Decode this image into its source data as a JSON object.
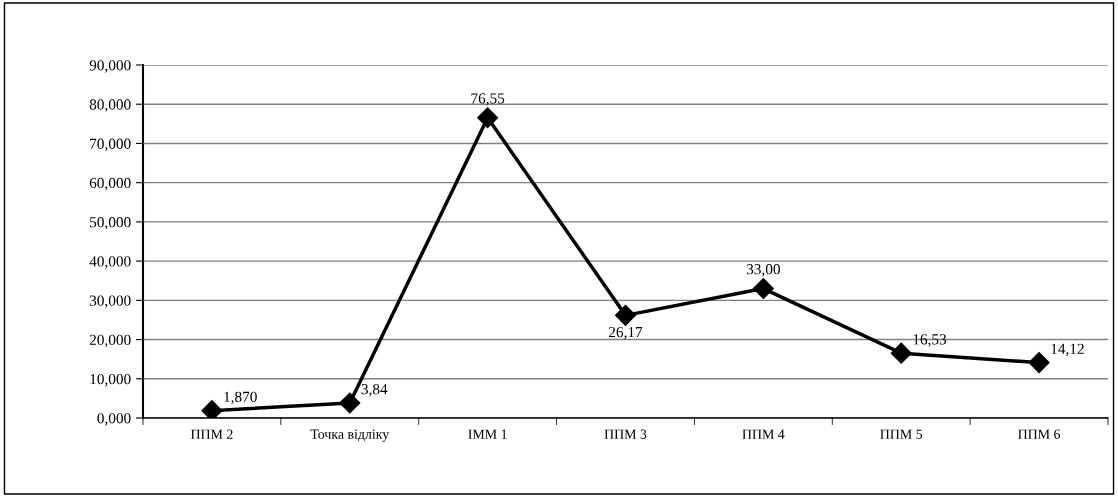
{
  "chart_data": {
    "type": "line",
    "categories": [
      "ППМ 2",
      "Точка відліку",
      "IММ 1",
      "ППМ 3",
      "ППМ 4",
      "ППМ 5",
      "ППМ 6"
    ],
    "series": [
      {
        "color": "#000000",
        "values": [
          1.87,
          3.84,
          76.55,
          26.17,
          33.0,
          16.53,
          14.12
        ],
        "value_labels": [
          "1,870",
          "3,84",
          "76,55",
          "26,17",
          "33,00",
          "16,53",
          "14,12"
        ]
      }
    ],
    "ylim": [
      0,
      90
    ],
    "yticks": [
      {
        "value": 0,
        "label": "0,000"
      },
      {
        "value": 10,
        "label": "10,000"
      },
      {
        "value": 20,
        "label": "20,000"
      },
      {
        "value": 30,
        "label": "30,000"
      },
      {
        "value": 40,
        "label": "40,000"
      },
      {
        "value": 50,
        "label": "50,000"
      },
      {
        "value": 60,
        "label": "60,000"
      },
      {
        "value": 70,
        "label": "70,000"
      },
      {
        "value": 80,
        "label": "80,000"
      },
      {
        "value": 90,
        "label": "90,000"
      }
    ],
    "grid": "y",
    "marker": "diamond",
    "line_style": "solid",
    "legend": false
  }
}
